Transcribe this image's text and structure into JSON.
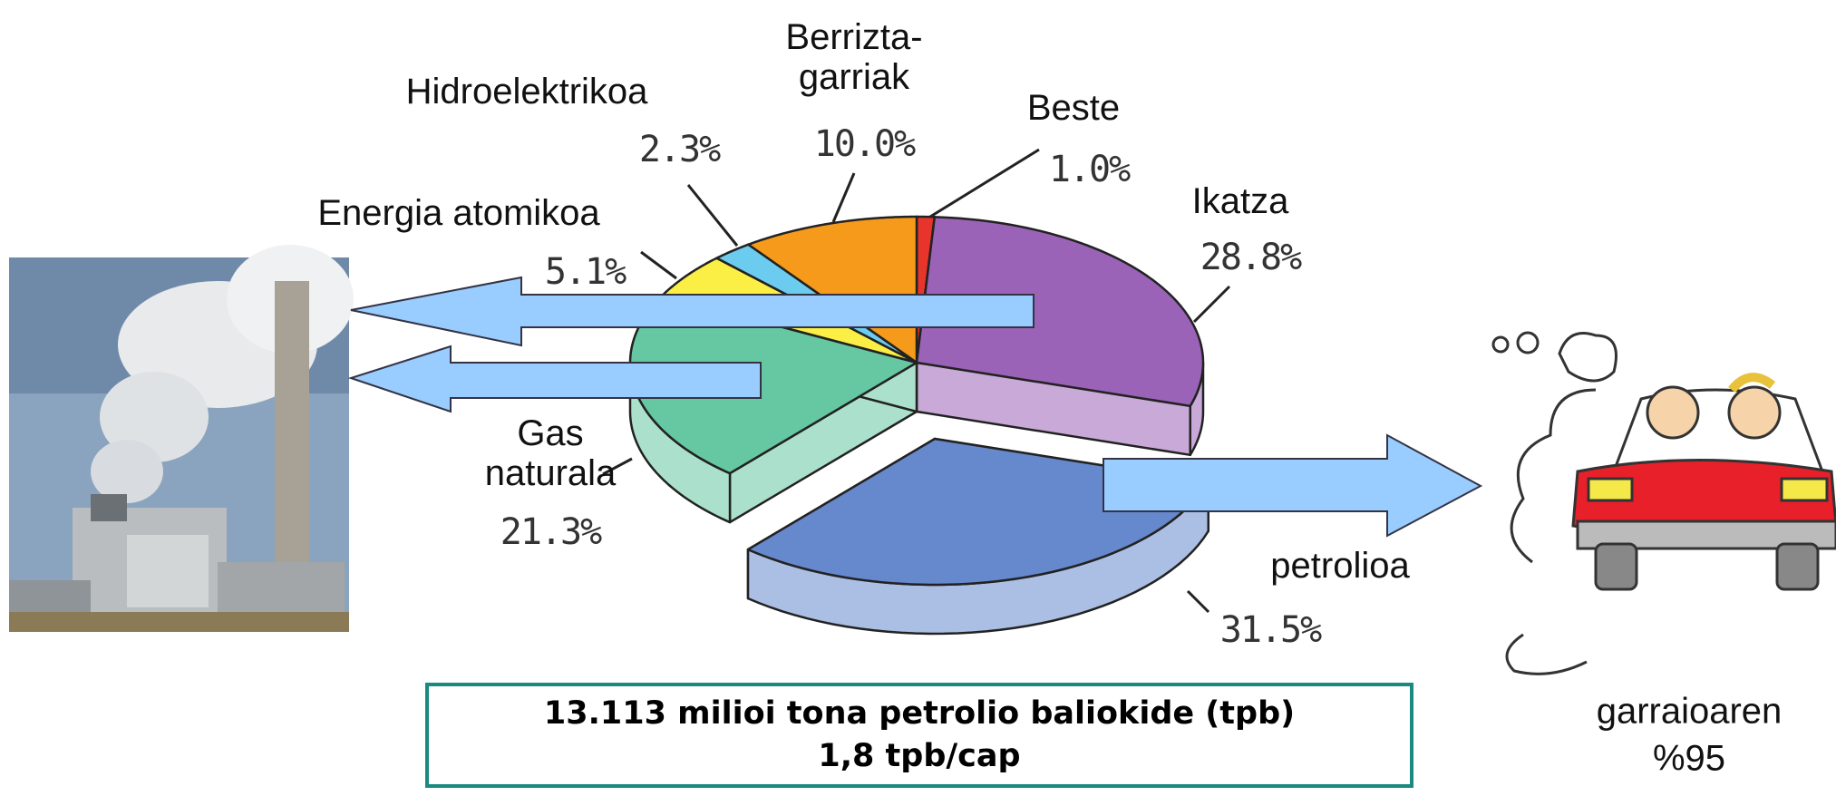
{
  "chart_data": {
    "type": "pie",
    "categories": [
      "Beste",
      "Ikatza",
      "petrolioa",
      "Gas\nnaturala",
      "Energia atomikoa",
      "Hidroelektrikoa",
      "Berrizta-\ngarriak"
    ],
    "values": [
      1.0,
      28.8,
      31.5,
      21.3,
      5.1,
      2.3,
      10.0
    ],
    "value_labels": [
      "1.0%",
      "28.8%",
      "31.5%",
      "21.3%",
      "5.1%",
      "2.3%",
      "10.0%"
    ],
    "colors": [
      "#e8352b",
      "#9b63b8",
      "#6688cc",
      "#66c8a2",
      "#fbef45",
      "#6cccf0",
      "#f59a1a"
    ],
    "annotations": [
      "13.113 milioi tona petrolio baliokide (tpb)",
      "1,8 tpb/cap",
      "garraioaren",
      "%95"
    ]
  }
}
